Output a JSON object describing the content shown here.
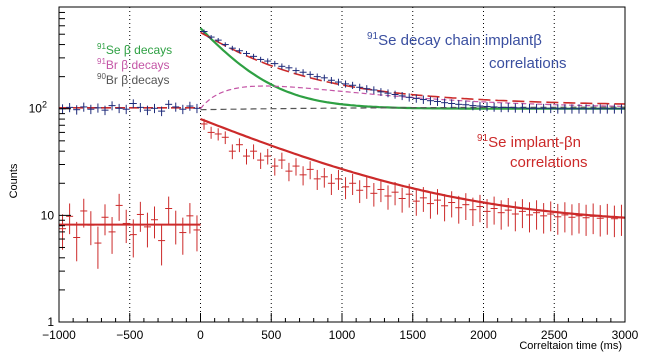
{
  "chart_data": {
    "type": "scatter",
    "xlabel": "Correltaion time (ms)",
    "ylabel": "Counts",
    "xlim": [
      -1000,
      3000
    ],
    "ylim": [
      1,
      900
    ],
    "yscale": "log",
    "x_ticks": [
      -1000,
      -500,
      0,
      500,
      1000,
      1500,
      2000,
      2500,
      3000
    ],
    "y_ticks": [
      {
        "value": 1,
        "label": "1"
      },
      {
        "value": 10,
        "label": "10"
      },
      {
        "value": 100,
        "label": "10",
        "sup": "2"
      }
    ],
    "grid": "x-dotted",
    "legend": {
      "position": "top-left",
      "entries": [
        {
          "isotope": "91",
          "name": "Se β decays",
          "color": "#2ea043"
        },
        {
          "isotope": "91",
          "name": "Br β decays",
          "color": "#c455a6"
        },
        {
          "isotope": "90",
          "name": "Br β decays",
          "color": "#555555"
        }
      ]
    },
    "annotations": [
      {
        "isotope": "91",
        "line1": "Se decay chain implantβ",
        "line2": "correlations",
        "color": "#3a4fa0"
      },
      {
        "isotope": "91",
        "line1": "Se implant-βn",
        "line2": "correlations",
        "color": "#cc2a2a"
      }
    ],
    "series": [
      {
        "name": "91Se decay chain implant-β correlations",
        "color": "#1d2a7a",
        "style": "points-with-errors",
        "points": [
          [
            -975,
            100
          ],
          [
            -925,
            103
          ],
          [
            -875,
            98
          ],
          [
            -825,
            104
          ],
          [
            -775,
            99
          ],
          [
            -725,
            102
          ],
          [
            -675,
            97
          ],
          [
            -625,
            107
          ],
          [
            -575,
            101
          ],
          [
            -525,
            99
          ],
          [
            -475,
            112
          ],
          [
            -425,
            103
          ],
          [
            -375,
            97
          ],
          [
            -325,
            101
          ],
          [
            -275,
            95
          ],
          [
            -225,
            110
          ],
          [
            -175,
            104
          ],
          [
            -125,
            99
          ],
          [
            -75,
            106
          ],
          [
            -25,
            101
          ],
          [
            25,
            530
          ],
          [
            75,
            470
          ],
          [
            125,
            440
          ],
          [
            175,
            400
          ],
          [
            225,
            370
          ],
          [
            275,
            350
          ],
          [
            325,
            330
          ],
          [
            375,
            310
          ],
          [
            425,
            290
          ],
          [
            475,
            280
          ],
          [
            525,
            265
          ],
          [
            575,
            250
          ],
          [
            625,
            242
          ],
          [
            675,
            228
          ],
          [
            725,
            220
          ],
          [
            775,
            210
          ],
          [
            825,
            200
          ],
          [
            875,
            195
          ],
          [
            925,
            185
          ],
          [
            975,
            178
          ],
          [
            1025,
            171
          ],
          [
            1075,
            166
          ],
          [
            1125,
            159
          ],
          [
            1175,
            154
          ],
          [
            1225,
            150
          ],
          [
            1275,
            144
          ],
          [
            1325,
            140
          ],
          [
            1375,
            136
          ],
          [
            1425,
            132
          ],
          [
            1475,
            128
          ],
          [
            1525,
            125
          ],
          [
            1575,
            122
          ],
          [
            1625,
            119
          ],
          [
            1675,
            117
          ],
          [
            1725,
            114
          ],
          [
            1775,
            112
          ],
          [
            1825,
            110
          ],
          [
            1875,
            109
          ],
          [
            1925,
            107
          ],
          [
            1975,
            106
          ],
          [
            2025,
            105
          ],
          [
            2075,
            104
          ],
          [
            2125,
            103
          ],
          [
            2175,
            103
          ],
          [
            2225,
            102
          ],
          [
            2275,
            102
          ],
          [
            2325,
            101
          ],
          [
            2375,
            101
          ],
          [
            2425,
            101
          ],
          [
            2475,
            101
          ],
          [
            2525,
            100
          ],
          [
            2575,
            100
          ],
          [
            2625,
            100
          ],
          [
            2675,
            100
          ],
          [
            2725,
            100
          ],
          [
            2775,
            100
          ],
          [
            2825,
            100
          ],
          [
            2875,
            100
          ],
          [
            2925,
            100
          ],
          [
            2975,
            100
          ]
        ]
      },
      {
        "name": "91Se implant-βn correlations",
        "color": "#cc2a2a",
        "style": "points-with-errors",
        "points": [
          [
            -975,
            7.5
          ],
          [
            -925,
            9.8
          ],
          [
            -875,
            6.2
          ],
          [
            -825,
            11
          ],
          [
            -775,
            8.1
          ],
          [
            -725,
            5.5
          ],
          [
            -675,
            9.6
          ],
          [
            -625,
            7
          ],
          [
            -575,
            12.4
          ],
          [
            -525,
            8.4
          ],
          [
            -475,
            6.6
          ],
          [
            -425,
            10.2
          ],
          [
            -375,
            7.8
          ],
          [
            -325,
            9.1
          ],
          [
            -275,
            5.8
          ],
          [
            -225,
            11.6
          ],
          [
            -175,
            8.2
          ],
          [
            -125,
            6.9
          ],
          [
            -75,
            9.9
          ],
          [
            -25,
            7.3
          ],
          [
            25,
            72
          ],
          [
            75,
            60
          ],
          [
            125,
            58
          ],
          [
            175,
            54
          ],
          [
            225,
            40
          ],
          [
            275,
            46
          ],
          [
            325,
            36
          ],
          [
            375,
            40
          ],
          [
            425,
            33
          ],
          [
            475,
            36
          ],
          [
            525,
            29
          ],
          [
            575,
            33
          ],
          [
            625,
            26
          ],
          [
            675,
            29
          ],
          [
            725,
            24
          ],
          [
            775,
            27
          ],
          [
            825,
            22
          ],
          [
            875,
            23
          ],
          [
            925,
            20
          ],
          [
            975,
            22
          ],
          [
            1025,
            18.5
          ],
          [
            1075,
            20
          ],
          [
            1125,
            17.2
          ],
          [
            1175,
            18.6
          ],
          [
            1225,
            16.1
          ],
          [
            1275,
            17.5
          ],
          [
            1325,
            15.2
          ],
          [
            1375,
            16.5
          ],
          [
            1425,
            14.4
          ],
          [
            1475,
            15.8
          ],
          [
            1525,
            13.6
          ],
          [
            1575,
            14.6
          ],
          [
            1625,
            12.9
          ],
          [
            1675,
            13.9
          ],
          [
            1725,
            12.3
          ],
          [
            1775,
            13.2
          ],
          [
            1825,
            11.8
          ],
          [
            1875,
            12.6
          ],
          [
            1925,
            11.3
          ],
          [
            1975,
            12.1
          ],
          [
            2025,
            10.9
          ],
          [
            2075,
            11.6
          ],
          [
            2125,
            10.6
          ],
          [
            2175,
            11.2
          ],
          [
            2225,
            10.3
          ],
          [
            2275,
            10.9
          ],
          [
            2325,
            10.1
          ],
          [
            2375,
            10.6
          ],
          [
            2425,
            9.9
          ],
          [
            2475,
            10.3
          ],
          [
            2525,
            9.7
          ],
          [
            2575,
            10.1
          ],
          [
            2625,
            9.6
          ],
          [
            2675,
            9.9
          ],
          [
            2725,
            9.5
          ],
          [
            2775,
            9.8
          ],
          [
            2825,
            9.4
          ],
          [
            2875,
            9.7
          ],
          [
            2925,
            9.3
          ],
          [
            2975,
            9.5
          ]
        ]
      }
    ]
  }
}
